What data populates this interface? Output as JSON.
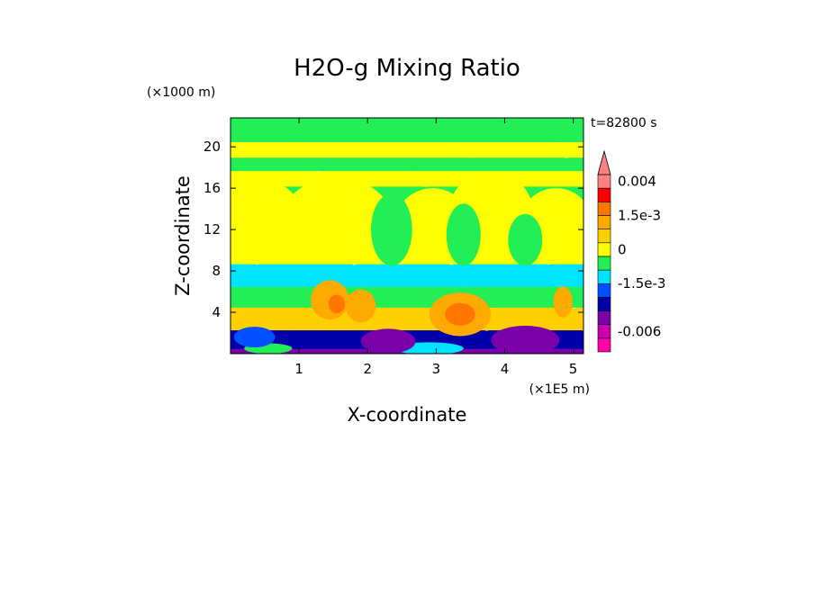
{
  "chart_data": {
    "type": "heatmap",
    "title": "H2O-g Mixing Ratio",
    "xlabel": "X-coordinate",
    "ylabel": "Z-coordinate",
    "x_unit": "(×1E5 m)",
    "y_unit": "(×1000 m)",
    "time_label": "t=82800 s",
    "xlim": [
      0,
      5.15
    ],
    "ylim": [
      0,
      22.8
    ],
    "x_ticks": [
      {
        "value": 1,
        "label": "1"
      },
      {
        "value": 2,
        "label": "2"
      },
      {
        "value": 3,
        "label": "3"
      },
      {
        "value": 4,
        "label": "4"
      },
      {
        "value": 5,
        "label": "5"
      }
    ],
    "y_ticks": [
      {
        "value": 4,
        "label": "4"
      },
      {
        "value": 8,
        "label": "8"
      },
      {
        "value": 12,
        "label": "12"
      },
      {
        "value": 16,
        "label": "16"
      },
      {
        "value": 20,
        "label": "20"
      }
    ],
    "colorbar": {
      "levels": [
        {
          "color": "#ff00aa"
        },
        {
          "color": "#cc00aa"
        },
        {
          "color": "#7a00aa"
        },
        {
          "color": "#0000aa"
        },
        {
          "color": "#0050ff"
        },
        {
          "color": "#00e5ff"
        },
        {
          "color": "#22ee55"
        },
        {
          "color": "#ffff00"
        },
        {
          "color": "#ffd000"
        },
        {
          "color": "#ffaa00"
        },
        {
          "color": "#ff7700"
        },
        {
          "color": "#ff0000"
        },
        {
          "color": "#ff8080"
        }
      ],
      "tick_labels": [
        {
          "label": "0.004",
          "level_index": 12
        },
        {
          "label": "1.5e-3",
          "level_index": 9.5
        },
        {
          "label": "0",
          "level_index": 7
        },
        {
          "label": "-1.5e-3",
          "level_index": 4.5
        },
        {
          "label": "-0.006",
          "level_index": 1
        }
      ]
    },
    "bands": [
      {
        "z": [
          0,
          0.8
        ],
        "color": "#7a00aa"
      },
      {
        "z": [
          0.8,
          2.6
        ],
        "color": "#0000aa"
      },
      {
        "z": [
          2.6,
          4.8
        ],
        "color": "#ffd000"
      },
      {
        "z": [
          4.8,
          6.8
        ],
        "color": "#22ee55"
      },
      {
        "z": [
          6.8,
          9.0
        ],
        "color": "#00e5ff"
      },
      {
        "z": [
          9.0,
          13.5
        ],
        "color": "#ffff00"
      },
      {
        "z": [
          13.5,
          16.5
        ],
        "color": "#22ee55"
      },
      {
        "z": [
          16.5,
          18.0
        ],
        "color": "#ffff00"
      },
      {
        "z": [
          18.0,
          19.3
        ],
        "color": "#22ee55"
      },
      {
        "z": [
          19.3,
          20.8
        ],
        "color": "#ffff00"
      },
      {
        "z": [
          20.8,
          22.8
        ],
        "color": "#22ee55"
      }
    ],
    "blobs": [
      {
        "x": 0.3,
        "z": 14.0,
        "rx": 0.7,
        "rz": 3.0,
        "color": "#ffff00"
      },
      {
        "x": 1.55,
        "z": 13.0,
        "rx": 0.8,
        "rz": 4.0,
        "color": "#ffff00"
      },
      {
        "x": 2.95,
        "z": 12.5,
        "rx": 0.55,
        "rz": 3.5,
        "color": "#ffff00"
      },
      {
        "x": 3.8,
        "z": 14.0,
        "rx": 0.6,
        "rz": 3.5,
        "color": "#ffff00"
      },
      {
        "x": 4.75,
        "z": 13.0,
        "rx": 0.5,
        "rz": 3.0,
        "color": "#ffff00"
      },
      {
        "x": 2.35,
        "z": 12.0,
        "rx": 0.3,
        "rz": 3.5,
        "color": "#22ee55"
      },
      {
        "x": 3.4,
        "z": 11.5,
        "rx": 0.25,
        "rz": 3.0,
        "color": "#22ee55"
      },
      {
        "x": 4.3,
        "z": 11.0,
        "rx": 0.25,
        "rz": 2.5,
        "color": "#22ee55"
      },
      {
        "x": 1.45,
        "z": 5.2,
        "rx": 0.28,
        "rz": 1.9,
        "color": "#ffaa00"
      },
      {
        "x": 1.55,
        "z": 4.8,
        "rx": 0.12,
        "rz": 0.9,
        "color": "#ff7700"
      },
      {
        "x": 1.9,
        "z": 4.6,
        "rx": 0.22,
        "rz": 1.6,
        "color": "#ffaa00"
      },
      {
        "x": 3.35,
        "z": 3.8,
        "rx": 0.45,
        "rz": 2.1,
        "color": "#ffaa00"
      },
      {
        "x": 3.35,
        "z": 3.8,
        "rx": 0.22,
        "rz": 1.1,
        "color": "#ff7700"
      },
      {
        "x": 4.85,
        "z": 5.0,
        "rx": 0.14,
        "rz": 1.5,
        "color": "#ffaa00"
      },
      {
        "x": 0.55,
        "z": 0.5,
        "rx": 0.35,
        "rz": 0.5,
        "color": "#22ee55"
      },
      {
        "x": 2.9,
        "z": 0.5,
        "rx": 0.5,
        "rz": 0.6,
        "color": "#00e5ff"
      },
      {
        "x": 2.3,
        "z": 1.2,
        "rx": 0.4,
        "rz": 1.2,
        "color": "#7a00aa"
      },
      {
        "x": 4.3,
        "z": 1.3,
        "rx": 0.5,
        "rz": 1.4,
        "color": "#7a00aa"
      },
      {
        "x": 0.35,
        "z": 1.6,
        "rx": 0.3,
        "rz": 1.0,
        "color": "#0050ff"
      }
    ]
  }
}
